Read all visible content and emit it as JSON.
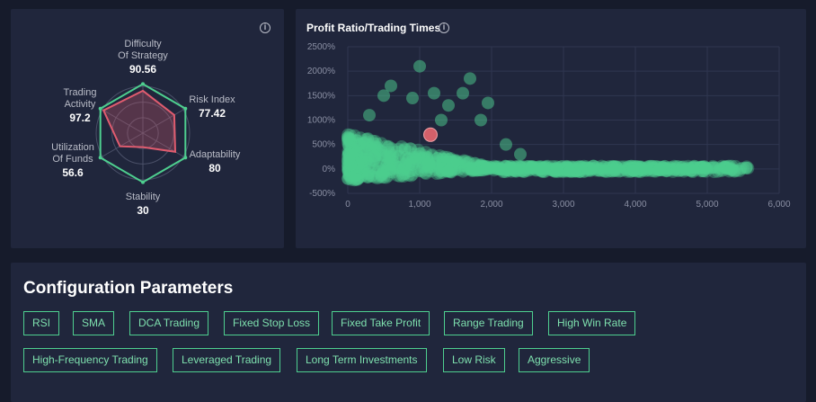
{
  "radar": {
    "metrics": [
      {
        "label_lines": [
          "Difficulty",
          "Of Strategy"
        ],
        "value": "90.56",
        "score": 90.56
      },
      {
        "label_lines": [
          "Risk Index"
        ],
        "value": "77.42",
        "score": 77.42
      },
      {
        "label_lines": [
          "Adaptability"
        ],
        "value": "80",
        "score": 80
      },
      {
        "label_lines": [
          "Stability"
        ],
        "value": "30",
        "score": 30
      },
      {
        "label_lines": [
          "Utilization",
          "Of Funds"
        ],
        "value": "56.6",
        "score": 56.6
      },
      {
        "label_lines": [
          "Trading",
          "Activity"
        ],
        "value": "97.2",
        "score": 97.2
      }
    ],
    "colors": {
      "outline": "#4ecf8f",
      "fill": "#e05c6f",
      "grid": "#4a5068"
    }
  },
  "scatter": {
    "title": "Profit Ratio/Trading Times",
    "info_icon": "info-icon",
    "colors": {
      "points": "#4ecf8f",
      "highlight": "#d3606a"
    },
    "chart_data": {
      "type": "scatter",
      "xlim": [
        0,
        6000
      ],
      "ylim": [
        -500,
        2500
      ],
      "x_ticks": [
        "0",
        "1,000",
        "2,000",
        "3,000",
        "4,000",
        "5,000",
        "6,000"
      ],
      "y_ticks": [
        "2500%",
        "2000%",
        "1500%",
        "1000%",
        "500%",
        "0%",
        "-500%"
      ],
      "grid": true,
      "highlight": {
        "x": 1150,
        "y": 700
      },
      "outliers": [
        {
          "x": 1000,
          "y": 2100
        },
        {
          "x": 1700,
          "y": 1850
        },
        {
          "x": 600,
          "y": 1700
        },
        {
          "x": 1200,
          "y": 1550
        },
        {
          "x": 1600,
          "y": 1550
        },
        {
          "x": 1950,
          "y": 1350
        },
        {
          "x": 900,
          "y": 1450
        },
        {
          "x": 1400,
          "y": 1300
        },
        {
          "x": 1850,
          "y": 1000
        },
        {
          "x": 2200,
          "y": 500
        },
        {
          "x": 2400,
          "y": 300
        },
        {
          "x": 300,
          "y": 1100
        },
        {
          "x": 500,
          "y": 1500
        },
        {
          "x": 1300,
          "y": 1000
        }
      ]
    }
  },
  "config": {
    "title": "Configuration Parameters",
    "tags": [
      "RSI",
      "SMA",
      "DCA Trading",
      "Fixed Stop Loss",
      "Fixed Take Profit",
      "Range Trading",
      "High Win Rate",
      "High-Frequency Trading",
      "Leveraged Trading",
      "Long Term Investments",
      "Low Risk",
      "Aggressive"
    ]
  }
}
